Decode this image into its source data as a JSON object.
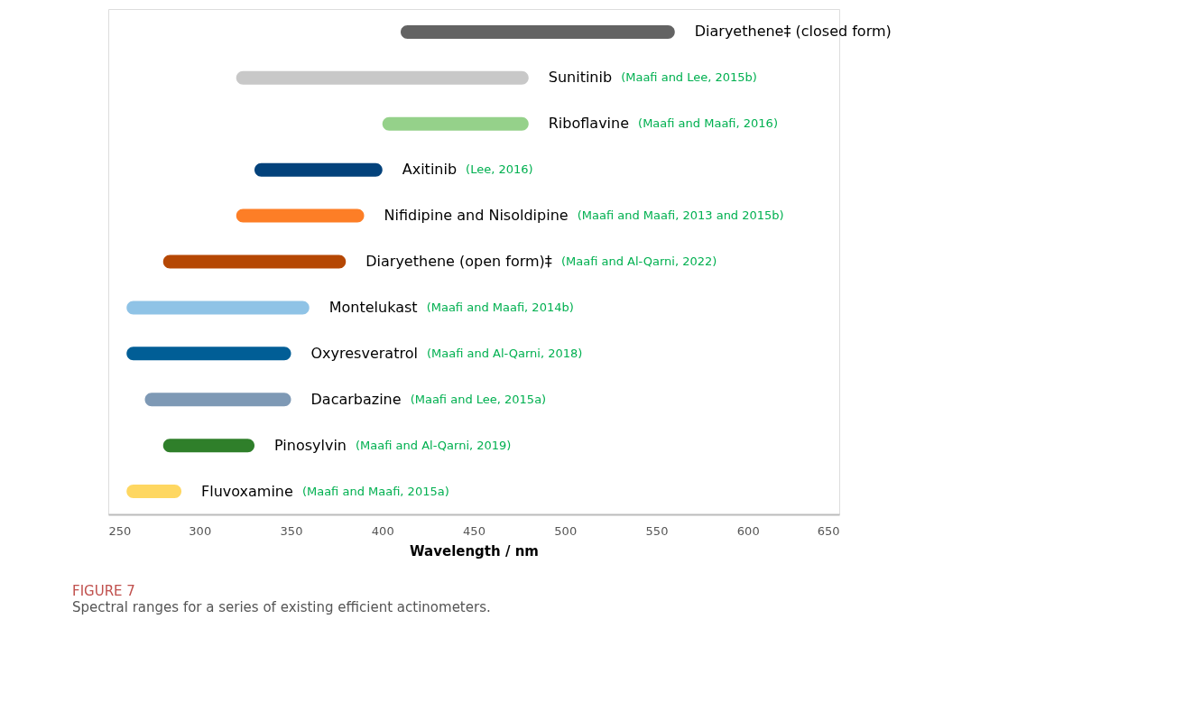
{
  "chart_data": {
    "type": "bar",
    "orientation": "horizontal",
    "title": "FIGURE 7",
    "subtitle": "Spectral ranges for a series of existing efficient actinometers.",
    "xlabel": "Wavelength / nm",
    "categories": [
      "Diaryethene‡ (closed form)",
      "Sunitinib",
      "Riboflavine",
      "Axitinib",
      "Nifidipine and Nisoldipine",
      "Diaryethene (open form)‡",
      "Montelukast",
      "Oxyresveratrol",
      "Dacarbazine",
      "Pinosylvin",
      "Fluvoxamine"
    ],
    "base": [
      410,
      320,
      400,
      330,
      320,
      280,
      260,
      260,
      270,
      280,
      260
    ],
    "values": [
      150,
      160,
      80,
      70,
      70,
      100,
      100,
      90,
      80,
      50,
      30
    ],
    "colors": [
      "#636363",
      "#c8c8c8",
      "#95d18a",
      "#03427b",
      "#fd7e26",
      "#b54703",
      "#8fc3e6",
      "#015e96",
      "#7e99b5",
      "#2f7f2a",
      "#fed761"
    ],
    "annotations": [
      "(Maafi and Lee, 2015b)",
      "(Maafi and Maafi, 2016)",
      "(Lee, 2016)",
      "(Maafi and Maafi, 2013 and 2015b)",
      "(Maafi and Al-Qarni, 2022)",
      "(Maafi and Maafi, 2014b)",
      "(Maafi and Al-Qarni, 2018)",
      "(Maafi and Lee, 2015a)",
      "(Maafi and Al-Qarni, 2019)",
      "(Maafi and Maafi, 2015a)"
    ],
    "xlim": [
      250,
      650
    ],
    "xticks": [
      250,
      300,
      350,
      400,
      450,
      500,
      550,
      600,
      650
    ],
    "tick_labels": "x",
    "grid": false
  }
}
